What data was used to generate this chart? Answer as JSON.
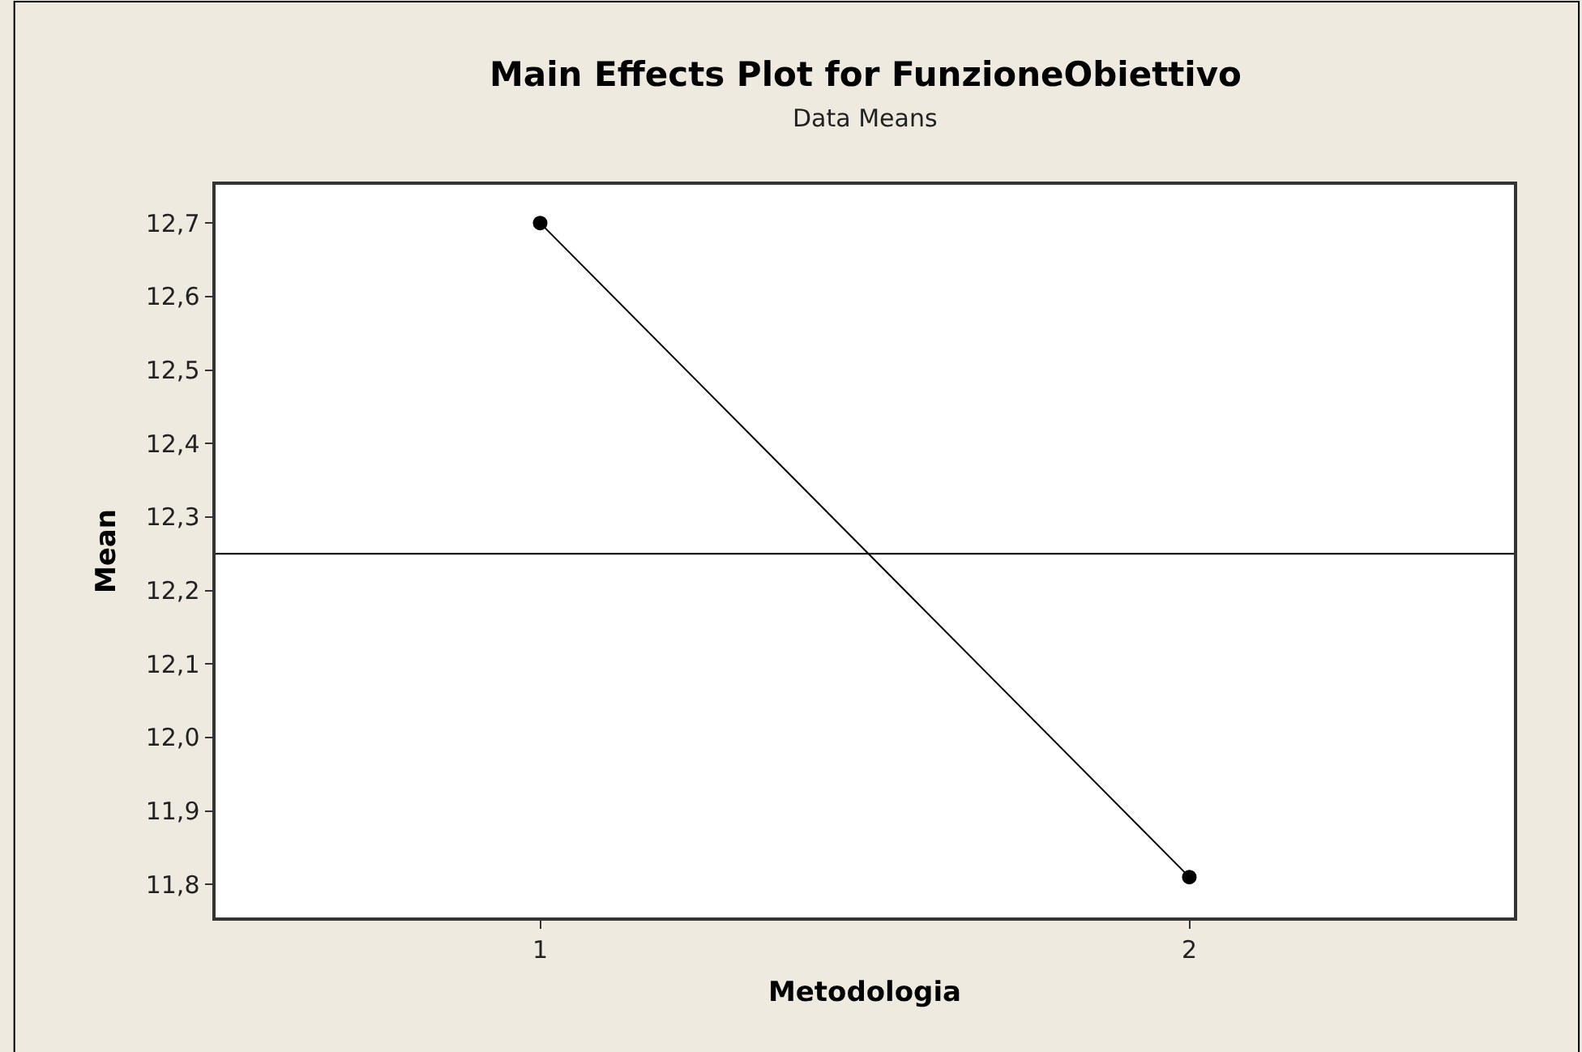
{
  "chart_data": {
    "type": "line",
    "title": "Main Effects Plot for FunzioneObiettivo",
    "subtitle": "Data Means",
    "xlabel": "Metodologia",
    "ylabel": "Mean",
    "x": [
      1,
      2
    ],
    "series": [
      {
        "color": "#000000",
        "values": [
          12.7,
          11.81
        ]
      }
    ],
    "xlim": [
      0.5,
      2.5
    ],
    "xticks": [
      1,
      2
    ],
    "ylim": [
      11.755,
      12.752
    ],
    "yticks": [
      {
        "value": 11.8,
        "label": "11,8"
      },
      {
        "value": 11.9,
        "label": "11,9"
      },
      {
        "value": 12.0,
        "label": "12,0"
      },
      {
        "value": 12.1,
        "label": "12,1"
      },
      {
        "value": 12.2,
        "label": "12,2"
      },
      {
        "value": 12.3,
        "label": "12,3"
      },
      {
        "value": 12.4,
        "label": "12,4"
      },
      {
        "value": 12.5,
        "label": "12,5"
      },
      {
        "value": 12.6,
        "label": "12,6"
      },
      {
        "value": 12.7,
        "label": "12,7"
      }
    ],
    "ref_lines": [
      {
        "axis": "y",
        "value": 12.25,
        "color": "#000000"
      }
    ],
    "marker": "circle",
    "line_style": "solid"
  }
}
